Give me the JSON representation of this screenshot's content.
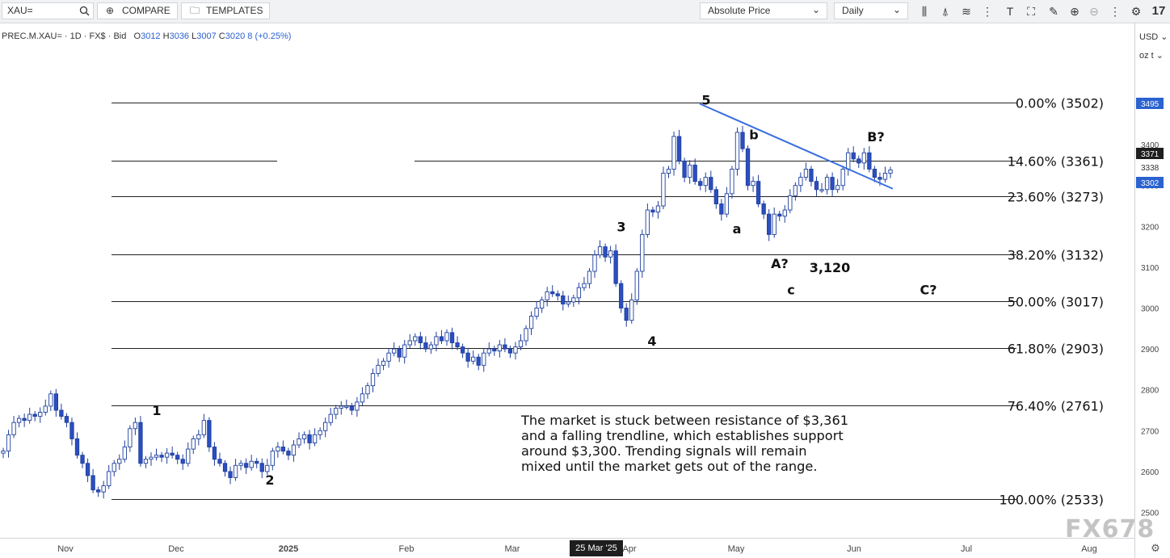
{
  "toolbar": {
    "symbol_value": "XAU=",
    "compare_label": "COMPARE",
    "templates_label": "TEMPLATES",
    "price_mode": "Absolute Price",
    "interval": "Daily",
    "tool_icons": [
      "candlestick-icon",
      "compare-chart-icon",
      "indicators-icon",
      "drawing-icon",
      "text-tool-icon",
      "crosshair-select-icon",
      "annotation-icon",
      "zoom-in-icon",
      "zoom-out-icon",
      "more-icon",
      "settings-icon",
      "logo-icon"
    ]
  },
  "legend": {
    "instrument": "PREC.M.XAU= · 1D · FX$ · Bid",
    "o_label": "O",
    "o_value": "3012",
    "h_label": "H",
    "h_value": "3036",
    "l_label": "L",
    "l_value": "3007",
    "c_label": "C",
    "c_value": "3020",
    "change": "8 (+0.25%)"
  },
  "axis_selectors": {
    "currency": "USD",
    "unit": "oz t"
  },
  "chart_data": {
    "type": "candlestick",
    "y_axis": {
      "ticks": [
        2500,
        2600,
        2700,
        2800,
        2900,
        3000,
        3100,
        3200,
        3300,
        3400
      ],
      "range": [
        2460,
        3590
      ]
    },
    "price_badges": [
      {
        "value": "3495",
        "color": "#2b62cf"
      },
      {
        "value": "3371",
        "color": "#1e1e1e"
      },
      {
        "value": "3338",
        "color": "none"
      },
      {
        "value": "3302",
        "color": "#2b62cf"
      }
    ],
    "x_labels": [
      "Nov",
      "Dec",
      "2025",
      "Feb",
      "Mar",
      "Apr",
      "May",
      "Jun",
      "Jul",
      "Aug"
    ],
    "crosshair_date": "25 Mar '25",
    "fib_levels": [
      {
        "label": "0.00% (3502)",
        "value": 3502
      },
      {
        "label": "14.60% (3361)",
        "value": 3361
      },
      {
        "label": "23.60% (3273)",
        "value": 3273
      },
      {
        "label": "38.20% (3132)",
        "value": 3132
      },
      {
        "label": "50.00% (3017)",
        "value": 3017
      },
      {
        "label": "61.80% (2903)",
        "value": 2903
      },
      {
        "label": "76.40% (2761)",
        "value": 2761
      },
      {
        "label": "100.00% (2533)",
        "value": 2533
      }
    ],
    "wave_labels": [
      {
        "text": "1",
        "price": 2750
      },
      {
        "text": "2",
        "price": 2580
      },
      {
        "text": "3",
        "price": 3200
      },
      {
        "text": "4",
        "price": 2920
      },
      {
        "text": "5",
        "price": 3510
      },
      {
        "text": "a",
        "price": 3195
      },
      {
        "text": "b",
        "price": 3425
      },
      {
        "text": "c",
        "price": 3045
      },
      {
        "text": "A?",
        "price": 3110
      },
      {
        "text": "B?",
        "price": 3420
      },
      {
        "text": "C?",
        "price": 3045
      },
      {
        "text": "3,120",
        "price": 3100
      }
    ],
    "trendline": {
      "from_price": 3500,
      "to_price": 3292
    },
    "closes": [
      2650,
      2690,
      2720,
      2730,
      2725,
      2740,
      2735,
      2745,
      2760,
      2790,
      2750,
      2735,
      2720,
      2680,
      2640,
      2620,
      2590,
      2555,
      2550,
      2565,
      2600,
      2620,
      2630,
      2660,
      2705,
      2720,
      2620,
      2630,
      2635,
      2640,
      2635,
      2645,
      2640,
      2630,
      2620,
      2655,
      2680,
      2690,
      2725,
      2660,
      2630,
      2620,
      2600,
      2585,
      2615,
      2620,
      2610,
      2625,
      2620,
      2600,
      2615,
      2650,
      2660,
      2650,
      2640,
      2665,
      2680,
      2690,
      2670,
      2690,
      2700,
      2720,
      2740,
      2755,
      2760,
      2760,
      2750,
      2770,
      2790,
      2810,
      2840,
      2860,
      2870,
      2890,
      2900,
      2880,
      2910,
      2920,
      2930,
      2915,
      2900,
      2910,
      2930,
      2920,
      2940,
      2915,
      2905,
      2890,
      2870,
      2880,
      2860,
      2890,
      2900,
      2895,
      2910,
      2900,
      2890,
      2905,
      2920,
      2950,
      2980,
      3000,
      3020,
      3040,
      3035,
      3030,
      3010,
      3015,
      3025,
      3050,
      3060,
      3090,
      3130,
      3150,
      3125,
      3140,
      3060,
      3000,
      2970,
      3020,
      3090,
      3180,
      3240,
      3235,
      3250,
      3330,
      3340,
      3420,
      3360,
      3320,
      3350,
      3310,
      3300,
      3320,
      3290,
      3255,
      3230,
      3280,
      3340,
      3430,
      3390,
      3300,
      3310,
      3255,
      3230,
      3180,
      3230,
      3225,
      3240,
      3275,
      3300,
      3320,
      3340,
      3310,
      3290,
      3290,
      3320,
      3290,
      3300,
      3340,
      3380,
      3365,
      3355,
      3380,
      3340,
      3320,
      3315,
      3330,
      3338
    ]
  },
  "annotation": {
    "line1": "The market is stuck between resistance of $3,361",
    "line2": "and a falling trendline, which establishes support",
    "line3": "around $3,300.  Trending signals will remain",
    "line4": "mixed until the market gets out of the range."
  },
  "watermark": "FX678"
}
